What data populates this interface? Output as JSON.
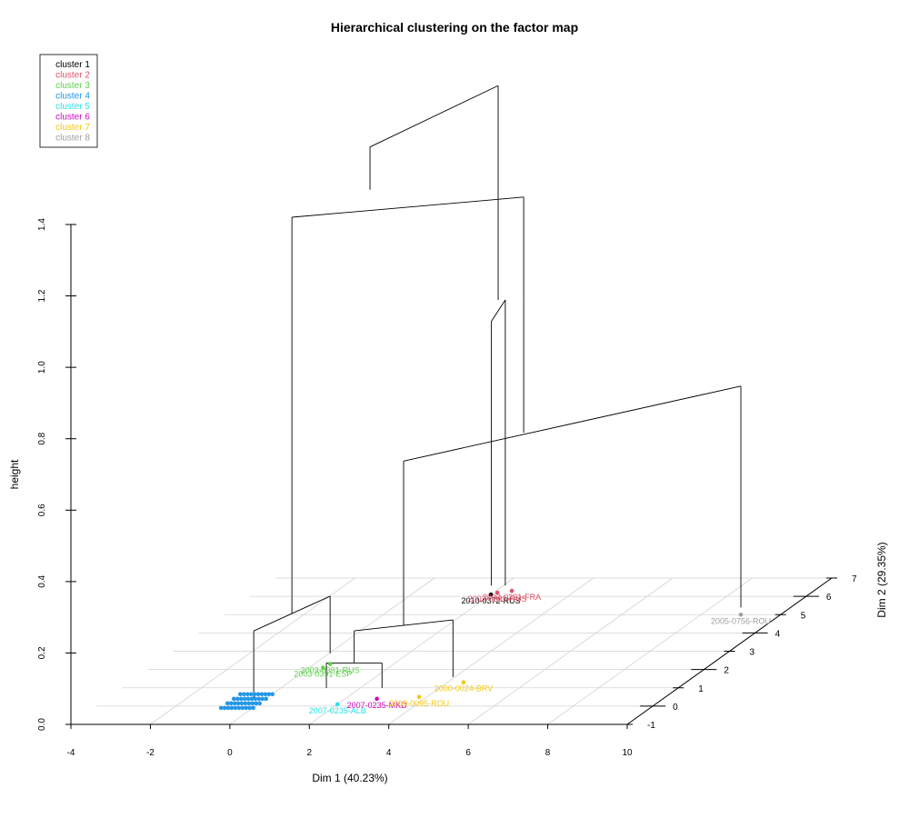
{
  "chart_data": {
    "type": "scatter",
    "title": "Hierarchical clustering on the factor map",
    "xlabel": "Dim 1 (40.23%)",
    "ylabel": "Dim 2 (29.35%)",
    "zlabel": "height",
    "xlim": [
      -4,
      10
    ],
    "ylim": [
      -1,
      7
    ],
    "zlim": [
      0,
      1.4
    ],
    "x_ticks": [
      "-4",
      "-2",
      "0",
      "2",
      "4",
      "6",
      "8",
      "10"
    ],
    "y_ticks": [
      "-1",
      "0",
      "1",
      "2",
      "3",
      "4",
      "5",
      "6",
      "7"
    ],
    "z_ticks": [
      "0.0",
      "0.2",
      "0.4",
      "0.6",
      "0.8",
      "1.0",
      "1.2",
      "1.4"
    ],
    "grid": true,
    "legend_position": "top-left",
    "legend": [
      {
        "name": "cluster 1",
        "color": "#000000"
      },
      {
        "name": "cluster 2",
        "color": "#DF536B"
      },
      {
        "name": "cluster 3",
        "color": "#61D04F"
      },
      {
        "name": "cluster 4",
        "color": "#2297E6"
      },
      {
        "name": "cluster 5",
        "color": "#28E2E5"
      },
      {
        "name": "cluster 6",
        "color": "#CD0BBC"
      },
      {
        "name": "cluster 7",
        "color": "#F5C710"
      },
      {
        "name": "cluster 8",
        "color": "#9E9E9E"
      }
    ],
    "labeled_points": [
      {
        "label": "2010-0372-RUS",
        "cluster": 1,
        "x": 2.0,
        "y": 6.1
      },
      {
        "label": "2003-0391-RUS",
        "cluster": 2,
        "x": 2.1,
        "y": 6.2
      },
      {
        "label": "2003-0391-FRA",
        "cluster": 2,
        "x": 2.4,
        "y": 6.3
      },
      {
        "label": "2003-0391-RUS",
        "cluster": 3,
        "x": 0.4,
        "y": 2.3
      },
      {
        "label": "2003-0391-ESP",
        "cluster": 3,
        "x": 0.35,
        "y": 2.1
      },
      {
        "label": "2007-0235-ALB",
        "cluster": 5,
        "x": 2.0,
        "y": 0.1
      },
      {
        "label": "2007-0235-MKD",
        "cluster": 6,
        "x": 2.8,
        "y": 0.4
      },
      {
        "label": "2000-0024-BRV",
        "cluster": 7,
        "x": 4.4,
        "y": 1.3
      },
      {
        "label": "2000-0095-ROU",
        "cluster": 7,
        "x": 3.8,
        "y": 0.5
      },
      {
        "label": "2005-0756-ROU",
        "cluster": 8,
        "x": 9.0,
        "y": 5.0
      }
    ],
    "dendrogram_merge_heights": [
      1.42,
      1.3,
      1.02,
      0.82,
      0.76,
      0.19,
      0.18,
      0.09,
      0.05,
      0.04,
      0.03
    ]
  }
}
